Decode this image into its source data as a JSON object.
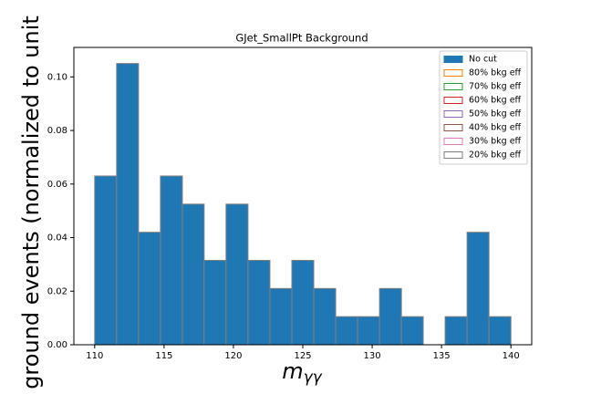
{
  "chart_data": {
    "type": "histogram",
    "title": "GJet_SmallPt Background",
    "xlabel": {
      "base": "m",
      "subscript": "γγ"
    },
    "ylabel": "ground events (normalized to unit",
    "bins": [
      110,
      111.58,
      113.16,
      114.74,
      116.32,
      117.89,
      119.47,
      121.05,
      122.63,
      124.21,
      125.79,
      127.37,
      128.95,
      130.53,
      132.11,
      133.68,
      135.26,
      136.84,
      138.42,
      140
    ],
    "series": [
      {
        "name": "No cut",
        "color": "#1f77b4",
        "edgecolor": "#808080",
        "filled": true,
        "values": [
          0.063,
          0.105,
          0.042,
          0.063,
          0.0525,
          0.0315,
          0.0525,
          0.0315,
          0.021,
          0.0315,
          0.021,
          0.0105,
          0.0105,
          0.021,
          0.0105,
          0,
          0.0105,
          0.042,
          0.0105
        ]
      },
      {
        "name": "80% bkg eff",
        "color": "#ff7f0e",
        "filled": false
      },
      {
        "name": "70% bkg eff",
        "color": "#2ca02c",
        "filled": false
      },
      {
        "name": "60% bkg eff",
        "color": "#d62728",
        "filled": false
      },
      {
        "name": "50% bkg eff",
        "color": "#9467bd",
        "filled": false
      },
      {
        "name": "40% bkg eff",
        "color": "#8c564b",
        "filled": false
      },
      {
        "name": "30% bkg eff",
        "color": "#e377c2",
        "filled": false
      },
      {
        "name": "20% bkg eff",
        "color": "#7f7f7f",
        "filled": false
      }
    ],
    "xlim": [
      108.5,
      141.5
    ],
    "ylim": [
      0,
      0.111
    ],
    "xticks": [
      110,
      115,
      120,
      125,
      130,
      135,
      140
    ],
    "yticks": [
      {
        "value": 0,
        "label": "0.00"
      },
      {
        "value": 0.02,
        "label": "0.02"
      },
      {
        "value": 0.04,
        "label": "0.04"
      },
      {
        "value": 0.06,
        "label": "0.06"
      },
      {
        "value": 0.08,
        "label": "0.08"
      },
      {
        "value": 0.1,
        "label": "0.10"
      }
    ],
    "legend": "upper right"
  }
}
